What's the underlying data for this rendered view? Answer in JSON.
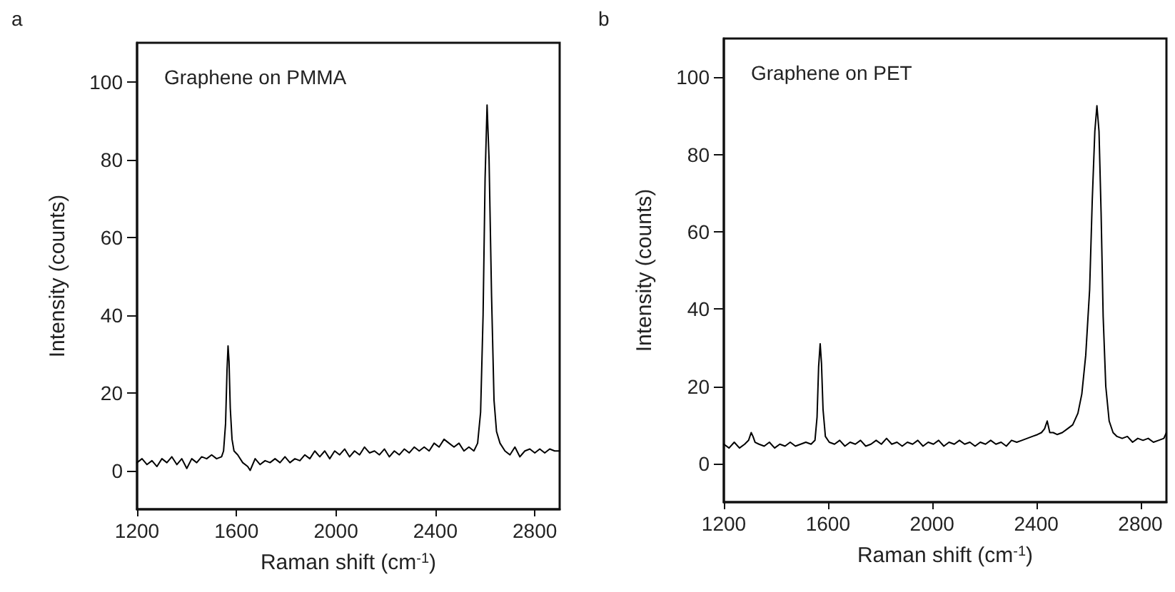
{
  "chart_data": [
    {
      "type": "line",
      "title": "Graphene on PMMA",
      "xlabel": "Raman shift (cm$^{-1}$)",
      "ylabel": "Intensity (counts)",
      "annotations": [
        "a"
      ],
      "marker": "none",
      "line_style": "solid",
      "xlim": [
        1200,
        2900
      ],
      "ylim": [
        -10,
        110
      ],
      "xticks": [
        1200,
        1600,
        2000,
        2400,
        2800
      ],
      "yticks": [
        0,
        20,
        40,
        60,
        80,
        100
      ],
      "series": [
        {
          "color": "#000000",
          "x": [
            1200,
            1220,
            1240,
            1260,
            1280,
            1300,
            1320,
            1340,
            1360,
            1380,
            1400,
            1420,
            1440,
            1460,
            1480,
            1500,
            1520,
            1540,
            1548,
            1556,
            1562,
            1566,
            1570,
            1575,
            1582,
            1590,
            1605,
            1625,
            1645,
            1655,
            1675,
            1695,
            1715,
            1735,
            1755,
            1775,
            1795,
            1815,
            1835,
            1855,
            1875,
            1895,
            1915,
            1935,
            1955,
            1975,
            1995,
            2015,
            2035,
            2055,
            2075,
            2095,
            2115,
            2135,
            2155,
            2175,
            2195,
            2215,
            2235,
            2255,
            2275,
            2295,
            2315,
            2335,
            2355,
            2375,
            2395,
            2415,
            2435,
            2455,
            2475,
            2495,
            2515,
            2535,
            2555,
            2570,
            2582,
            2592,
            2600,
            2608,
            2616,
            2626,
            2636,
            2646,
            2660,
            2680,
            2700,
            2720,
            2740,
            2760,
            2780,
            2800,
            2820,
            2840,
            2860,
            2880,
            2900
          ],
          "values": [
            2,
            3,
            1.5,
            2.5,
            1,
            3,
            2,
            3.5,
            1.5,
            3,
            0.5,
            3,
            2,
            3.5,
            3,
            4,
            3,
            3.5,
            5,
            12,
            26,
            32,
            28,
            16,
            8,
            5,
            4,
            2,
            1,
            0,
            3,
            1.5,
            2.5,
            2,
            3,
            2,
            3.5,
            2,
            3,
            2.5,
            4,
            3,
            5,
            3.5,
            5,
            3,
            5,
            4,
            5.5,
            3.5,
            5,
            4,
            6,
            4.5,
            5,
            4,
            5.5,
            3.5,
            5,
            4,
            5.5,
            4.5,
            6,
            5,
            6,
            5,
            7,
            6,
            8,
            7,
            6,
            7,
            5,
            6,
            5,
            7,
            15,
            40,
            75,
            94,
            80,
            45,
            18,
            10,
            7,
            5,
            4,
            6,
            3.5,
            5,
            5.5,
            4.5,
            5.5,
            4.5,
            5.5,
            5,
            5
          ]
        }
      ]
    },
    {
      "type": "line",
      "title": "Graphene on PET",
      "xlabel": "Raman shift (cm$^{-1}$)",
      "ylabel": "Intensity (counts)",
      "annotations": [
        "b"
      ],
      "marker": "none",
      "line_style": "solid",
      "xlim": [
        1200,
        2900
      ],
      "ylim": [
        -10,
        110
      ],
      "xticks": [
        1200,
        1600,
        2000,
        2400,
        2800
      ],
      "yticks": [
        0,
        20,
        40,
        60,
        80,
        100
      ],
      "series": [
        {
          "color": "#000000",
          "x": [
            1200,
            1220,
            1240,
            1260,
            1280,
            1295,
            1305,
            1312,
            1320,
            1335,
            1355,
            1375,
            1395,
            1415,
            1435,
            1455,
            1475,
            1495,
            1515,
            1535,
            1550,
            1558,
            1564,
            1570,
            1575,
            1581,
            1590,
            1605,
            1625,
            1645,
            1665,
            1685,
            1705,
            1725,
            1745,
            1765,
            1785,
            1805,
            1825,
            1845,
            1865,
            1885,
            1905,
            1925,
            1945,
            1965,
            1985,
            2005,
            2025,
            2045,
            2065,
            2085,
            2105,
            2125,
            2145,
            2165,
            2185,
            2205,
            2225,
            2245,
            2265,
            2285,
            2305,
            2325,
            2345,
            2365,
            2385,
            2405,
            2420,
            2432,
            2442,
            2452,
            2465,
            2480,
            2500,
            2520,
            2540,
            2560,
            2575,
            2590,
            2605,
            2615,
            2625,
            2633,
            2641,
            2649,
            2657,
            2667,
            2680,
            2695,
            2710,
            2730,
            2750,
            2770,
            2790,
            2810,
            2830,
            2850,
            2870,
            2890,
            2900
          ],
          "values": [
            5,
            4,
            5.5,
            4,
            5,
            6,
            8,
            7,
            5.5,
            5,
            4.5,
            5.5,
            4,
            5,
            4.5,
            5.5,
            4.5,
            5,
            5.5,
            5,
            6,
            12,
            25,
            31,
            26,
            14,
            7,
            5.5,
            5,
            6,
            4.5,
            5.5,
            5,
            6,
            4.5,
            5,
            6,
            5,
            6.5,
            5,
            5.5,
            4.5,
            5.5,
            5,
            6,
            4.5,
            5.5,
            5,
            6,
            4.5,
            5.5,
            5,
            6,
            5,
            5.5,
            4.5,
            5.5,
            5,
            6,
            5,
            5.5,
            4.5,
            6,
            5.5,
            6,
            6.5,
            7,
            7.5,
            8,
            9,
            11,
            8,
            8,
            7.5,
            8,
            9,
            10,
            13,
            18,
            28,
            45,
            68,
            86,
            92.6,
            86,
            65,
            38,
            20,
            11,
            8,
            7,
            6.5,
            7,
            5.5,
            6.5,
            6,
            6.5,
            5.5,
            6,
            6.5,
            8
          ]
        }
      ]
    }
  ]
}
